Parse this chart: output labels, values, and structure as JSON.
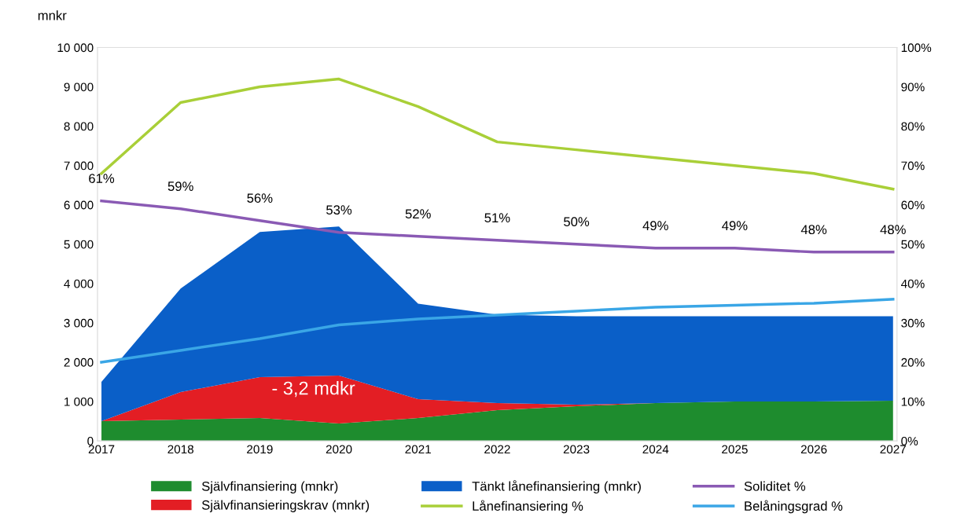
{
  "chart_data": {
    "type": "area",
    "stacked": true,
    "ylabel": "mnkr",
    "categories": [
      "2017",
      "2018",
      "2019",
      "2020",
      "2021",
      "2022",
      "2023",
      "2024",
      "2025",
      "2026",
      "2027"
    ],
    "ylim": [
      0,
      10000
    ],
    "yticks": [
      {
        "value": 0,
        "label": "0"
      },
      {
        "value": 1000,
        "label": "1 000"
      },
      {
        "value": 2000,
        "label": "2 000"
      },
      {
        "value": 3000,
        "label": "3 000"
      },
      {
        "value": 4000,
        "label": "4 000"
      },
      {
        "value": 5000,
        "label": "5 000"
      },
      {
        "value": 6000,
        "label": "6 000"
      },
      {
        "value": 7000,
        "label": "7 000"
      },
      {
        "value": 8000,
        "label": "8 000"
      },
      {
        "value": 9000,
        "label": "9 000"
      },
      {
        "value": 10000,
        "label": "10 000"
      }
    ],
    "y2lim": [
      0,
      100
    ],
    "y2ticks": [
      {
        "value": 0,
        "label": "0%"
      },
      {
        "value": 10,
        "label": "10%"
      },
      {
        "value": 20,
        "label": "20%"
      },
      {
        "value": 30,
        "label": "30%"
      },
      {
        "value": 40,
        "label": "40%"
      },
      {
        "value": 50,
        "label": "50%"
      },
      {
        "value": 60,
        "label": "60%"
      },
      {
        "value": 70,
        "label": "70%"
      },
      {
        "value": 80,
        "label": "80%"
      },
      {
        "value": 90,
        "label": "90%"
      },
      {
        "value": 100,
        "label": "100%"
      }
    ],
    "grid": false,
    "legend": "bottom",
    "annotations": [
      "- 3,2 mdkr"
    ],
    "series": [
      {
        "name": "Självfinansiering (mnkr)",
        "color": "#1e8c2e",
        "values": [
          500,
          540,
          580,
          440,
          580,
          780,
          880,
          960,
          1000,
          1000,
          1020
        ]
      },
      {
        "name": "Självfinansieringskrav (mnkr)",
        "color": "#e31e24",
        "values": [
          0,
          700,
          1040,
          1220,
          480,
          180,
          40,
          0,
          0,
          0,
          0
        ]
      },
      {
        "name": "Tänkt lånefinansiering (mnkr)",
        "color": "#0a5fc8",
        "values": [
          1000,
          2630,
          3690,
          3790,
          2430,
          2250,
          2250,
          2210,
          2170,
          2170,
          2150
        ]
      },
      {
        "name": "Lånefinansiering %",
        "type": "line",
        "axis": "y2",
        "color": "#a9cf38",
        "values": [
          68,
          86,
          90,
          92,
          85,
          76,
          74,
          72,
          70,
          68,
          64
        ]
      },
      {
        "name": "Soliditet %",
        "type": "line",
        "axis": "y2",
        "color": "#8a5ab4",
        "values": [
          61,
          59,
          56,
          53,
          52,
          51,
          50,
          49,
          49,
          48,
          48
        ],
        "value_labels": [
          "61%",
          "59%",
          "56%",
          "53%",
          "52%",
          "51%",
          "50%",
          "49%",
          "49%",
          "48%",
          "48%"
        ]
      },
      {
        "name": "Belåningsgrad %",
        "type": "line",
        "axis": "y2",
        "color": "#3aa6e6",
        "values": [
          20,
          23,
          26,
          29.5,
          31,
          32,
          33,
          34,
          34.5,
          35,
          36
        ]
      }
    ]
  }
}
